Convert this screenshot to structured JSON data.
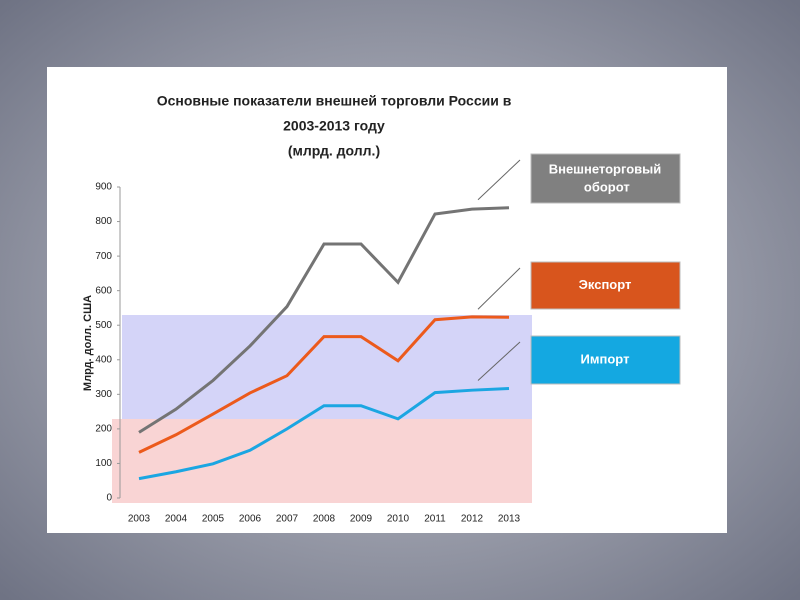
{
  "chart_data": {
    "type": "line",
    "title": [
      "Основные показатели внешней торговли России в",
      "2003-2013 году",
      "(млрд. долл.)"
    ],
    "y_label": "Млрд. долл. США",
    "categories": [
      "2003",
      "2004",
      "2005",
      "2006",
      "2007",
      "2008",
      "2009",
      "2010",
      "2011",
      "2012",
      "2013"
    ],
    "series": [
      {
        "name": "Внешнеторговый оборот",
        "color": "#747474",
        "values": [
          190,
          257,
          340,
          440,
          554,
          735,
          735,
          624,
          822,
          836,
          840
        ]
      },
      {
        "name": "Экспорт",
        "color": "#ec5a1c",
        "values": [
          132,
          183,
          243,
          304,
          354,
          467,
          467,
          397,
          516,
          524,
          523
        ]
      },
      {
        "name": "Импорт",
        "color": "#1ba6e2",
        "values": [
          56,
          76,
          99,
          138,
          200,
          267,
          267,
          229,
          305,
          312,
          317
        ]
      }
    ],
    "legend_colors": [
      "#808080",
      "#d8551d",
      "#14a8e1"
    ],
    "ylim": [
      0,
      900
    ],
    "yticks": [
      0,
      100,
      200,
      300,
      400,
      500,
      600,
      700,
      800,
      900
    ],
    "grid": false
  }
}
